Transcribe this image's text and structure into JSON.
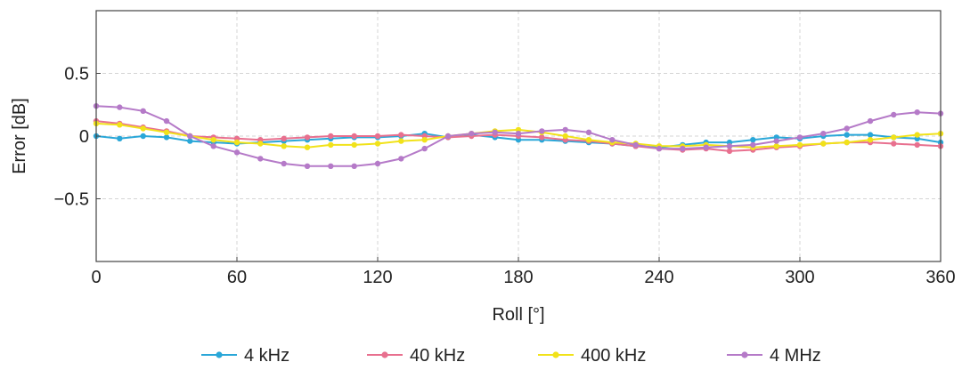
{
  "chart_data": {
    "type": "line",
    "xlabel": "Roll [°]",
    "ylabel": "Error [dB]",
    "xlim": [
      0,
      360
    ],
    "ylim": [
      -1,
      1
    ],
    "xticks": [
      0,
      60,
      120,
      180,
      240,
      300,
      360
    ],
    "xtick_labels": [
      "0",
      "60",
      "120",
      "180",
      "240",
      "300",
      "360"
    ],
    "yticks": [
      0.5,
      0,
      -0.5
    ],
    "ytick_labels": [
      "0.5",
      "0",
      "−0.5"
    ],
    "grid": true,
    "legend_position": "bottom",
    "x": [
      0,
      10,
      20,
      30,
      40,
      50,
      60,
      70,
      80,
      90,
      100,
      110,
      120,
      130,
      140,
      150,
      160,
      170,
      180,
      190,
      200,
      210,
      220,
      230,
      240,
      250,
      260,
      270,
      280,
      290,
      300,
      310,
      320,
      330,
      340,
      350,
      360
    ],
    "series": [
      {
        "name": "4 kHz",
        "color": "#2aa7d8",
        "values": [
          0.0,
          -0.02,
          0.0,
          -0.01,
          -0.04,
          -0.05,
          -0.06,
          -0.05,
          -0.04,
          -0.03,
          -0.02,
          -0.01,
          -0.01,
          0.0,
          0.02,
          -0.01,
          0.01,
          -0.01,
          -0.03,
          -0.03,
          -0.04,
          -0.05,
          -0.06,
          -0.08,
          -0.09,
          -0.07,
          -0.05,
          -0.05,
          -0.03,
          -0.01,
          -0.02,
          0.0,
          0.01,
          0.01,
          -0.01,
          -0.02,
          -0.05
        ]
      },
      {
        "name": "40 kHz",
        "color": "#e8708f",
        "values": [
          0.12,
          0.1,
          0.07,
          0.04,
          0.0,
          -0.01,
          -0.02,
          -0.03,
          -0.02,
          -0.01,
          0.0,
          0.0,
          0.0,
          0.01,
          0.0,
          -0.01,
          0.0,
          0.01,
          0.0,
          -0.01,
          -0.03,
          -0.04,
          -0.06,
          -0.08,
          -0.1,
          -0.11,
          -0.1,
          -0.12,
          -0.11,
          -0.09,
          -0.08,
          -0.06,
          -0.05,
          -0.05,
          -0.06,
          -0.07,
          -0.08
        ]
      },
      {
        "name": "400 kHz",
        "color": "#f1e21a",
        "values": [
          0.1,
          0.09,
          0.06,
          0.03,
          0.0,
          -0.03,
          -0.05,
          -0.06,
          -0.08,
          -0.09,
          -0.07,
          -0.07,
          -0.06,
          -0.04,
          -0.03,
          0.0,
          0.02,
          0.04,
          0.05,
          0.03,
          0.0,
          -0.03,
          -0.05,
          -0.06,
          -0.08,
          -0.08,
          -0.07,
          -0.08,
          -0.09,
          -0.08,
          -0.07,
          -0.06,
          -0.05,
          -0.03,
          -0.01,
          0.01,
          0.02
        ]
      },
      {
        "name": "4 MHz",
        "color": "#b57ac8",
        "values": [
          0.24,
          0.23,
          0.2,
          0.12,
          0.0,
          -0.08,
          -0.13,
          -0.18,
          -0.22,
          -0.24,
          -0.24,
          -0.24,
          -0.22,
          -0.18,
          -0.1,
          0.0,
          0.02,
          0.03,
          0.02,
          0.04,
          0.05,
          0.03,
          -0.03,
          -0.07,
          -0.1,
          -0.1,
          -0.09,
          -0.08,
          -0.07,
          -0.04,
          -0.01,
          0.02,
          0.06,
          0.12,
          0.17,
          0.19,
          0.18
        ]
      }
    ]
  }
}
